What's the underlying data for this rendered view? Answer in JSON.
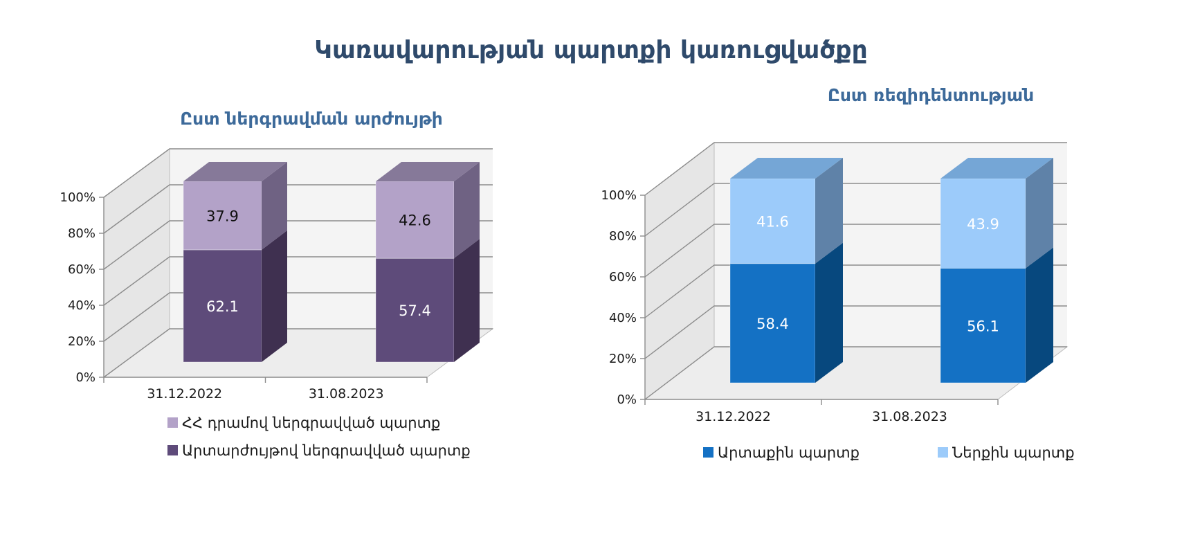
{
  "title": "Կառավարության պարտքի կառուցվածքը",
  "chart_data": [
    {
      "type": "bar",
      "stacked": true,
      "three_d": true,
      "title": "Ըստ ներգրավման արժույթի",
      "categories": [
        "31.12.2022",
        "31.08.2023"
      ],
      "y_ticks": [
        "0%",
        "20%",
        "40%",
        "60%",
        "80%",
        "100%"
      ],
      "ylim": [
        0,
        100
      ],
      "grid": true,
      "legend_position": "bottom",
      "series": [
        {
          "name": "Արտարժույթով ներգրավված պարտք",
          "values": [
            62.1,
            57.4
          ],
          "value_labels": [
            "62.1",
            "57.4"
          ],
          "color": "#5e4b7a",
          "side_color": "#3f3050",
          "top_color": "#867999",
          "label_color": "#ffffff"
        },
        {
          "name": "ՀՀ դրամով ներգրավված պարտք",
          "values": [
            37.9,
            42.6
          ],
          "value_labels": [
            "37.9",
            "42.6"
          ],
          "color": "#b3a2c8",
          "side_color": "#6f6283",
          "top_color": "#867999",
          "label_color": "#111111"
        }
      ],
      "legend_order": [
        1,
        0
      ]
    },
    {
      "type": "bar",
      "stacked": true,
      "three_d": true,
      "title": "Ըստ ռեզիդենտության",
      "categories": [
        "31.12.2022",
        "31.08.2023"
      ],
      "y_ticks": [
        "0%",
        "20%",
        "40%",
        "60%",
        "80%",
        "100%"
      ],
      "ylim": [
        0,
        100
      ],
      "grid": true,
      "legend_position": "bottom",
      "series": [
        {
          "name": "Արտաքին պարտք",
          "values": [
            58.4,
            56.1
          ],
          "value_labels": [
            "58.4",
            "56.1"
          ],
          "color": "#1471c4",
          "side_color": "#07487e",
          "top_color": "#75a6d6",
          "label_color": "#ffffff"
        },
        {
          "name": "Ներքին պարտք",
          "values": [
            41.6,
            43.9
          ],
          "value_labels": [
            "41.6",
            "43.9"
          ],
          "color": "#9ccbfa",
          "side_color": "#5f82a8",
          "top_color": "#75a6d6",
          "label_color": "#ffffff"
        }
      ],
      "legend_order": [
        0,
        1
      ]
    }
  ]
}
